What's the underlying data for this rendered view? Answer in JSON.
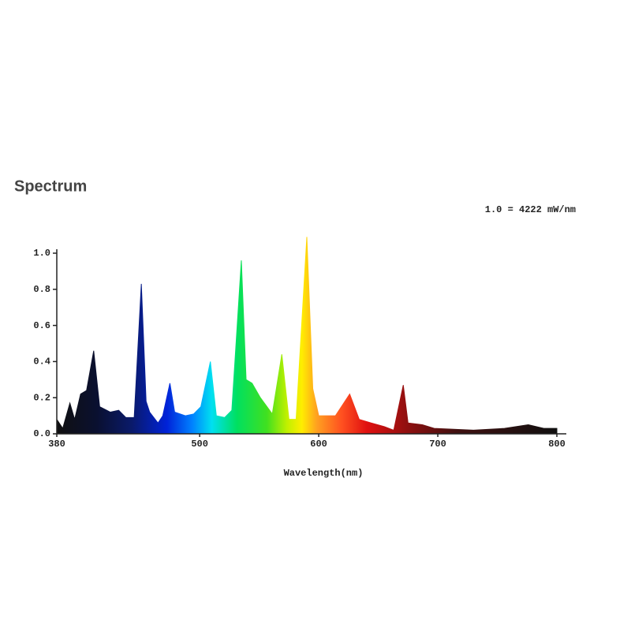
{
  "chart_data": {
    "type": "area",
    "title": "Spectrum",
    "annotation": "1.0 = 4222 mW/nm",
    "xlabel": "Wavelength(nm)",
    "x": [
      380,
      385,
      391,
      395,
      400,
      405,
      411,
      416,
      425,
      432,
      438,
      445,
      451,
      455,
      458,
      465,
      469,
      475,
      479,
      488,
      495,
      501,
      509,
      514,
      521,
      527,
      535,
      539,
      544,
      551,
      561,
      569,
      575,
      581,
      590,
      595,
      600,
      614,
      626,
      634,
      644,
      655,
      663,
      671,
      675,
      687,
      697,
      730,
      756,
      776,
      789,
      800
    ],
    "values": [
      0.08,
      0.03,
      0.17,
      0.08,
      0.22,
      0.24,
      0.46,
      0.15,
      0.12,
      0.13,
      0.09,
      0.09,
      0.83,
      0.18,
      0.12,
      0.06,
      0.1,
      0.28,
      0.12,
      0.1,
      0.11,
      0.15,
      0.4,
      0.1,
      0.09,
      0.13,
      0.96,
      0.3,
      0.28,
      0.2,
      0.11,
      0.44,
      0.08,
      0.08,
      1.09,
      0.25,
      0.1,
      0.1,
      0.22,
      0.08,
      0.06,
      0.04,
      0.02,
      0.27,
      0.06,
      0.05,
      0.03,
      0.02,
      0.03,
      0.05,
      0.03,
      0.03
    ],
    "xlim": [
      380,
      800
    ],
    "ylim": [
      0,
      1.0
    ],
    "xticks": [
      380,
      500,
      600,
      700,
      800
    ],
    "yticks": [
      {
        "value": 0,
        "label": "0.0"
      },
      0.2,
      0.4,
      0.6,
      0.8,
      {
        "value": 1.0,
        "label": "1.0"
      }
    ]
  }
}
